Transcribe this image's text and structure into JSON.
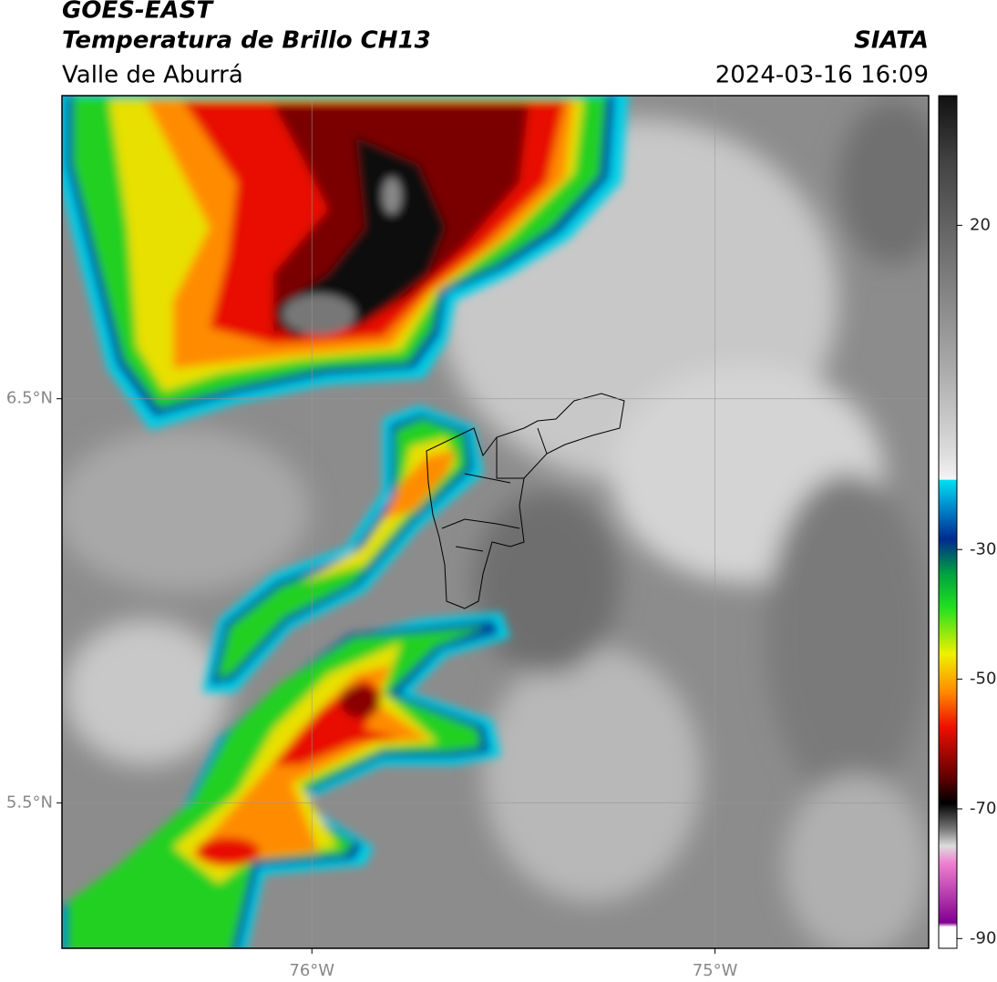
{
  "header": {
    "title": "GOES-EAST",
    "subtitle": "Temperatura de Brillo CH13",
    "source": "SIATA",
    "region": "Valle de Aburrá",
    "datetime": "2024-03-16 16:09"
  },
  "map": {
    "xlim": [
      -76.62,
      -74.47
    ],
    "ylim": [
      5.14,
      7.25
    ],
    "xticks": [
      {
        "value": -76,
        "label": "76°W"
      },
      {
        "value": -75,
        "label": "75°W"
      }
    ],
    "yticks": [
      {
        "value": 5.5,
        "label": "5.5°N"
      },
      {
        "value": 6.5,
        "label": "6.5°N"
      }
    ],
    "grid": true
  },
  "colorbar": {
    "clim": [
      -91.5,
      40
    ],
    "ticks": [
      20,
      -30,
      -50,
      -70,
      -90
    ]
  }
}
